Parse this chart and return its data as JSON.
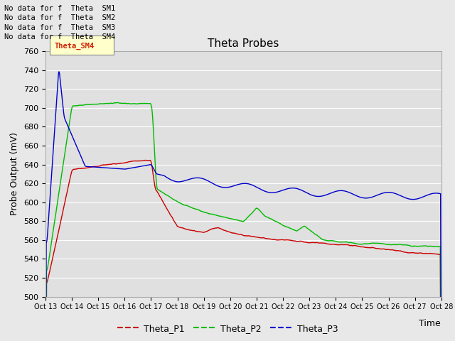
{
  "title": "Theta Probes",
  "ylabel": "Probe Output (mV)",
  "xlabel": "Time",
  "ylim": [
    500,
    760
  ],
  "yticks": [
    500,
    520,
    540,
    560,
    580,
    600,
    620,
    640,
    660,
    680,
    700,
    720,
    740,
    760
  ],
  "fig_bg": "#e8e8e8",
  "plot_bg": "#e0e0e0",
  "grid_color": "#ffffff",
  "no_data_lines": [
    "No data for f  Theta  SM1",
    "No data for f  Theta  SM2",
    "No data for f  Theta  SM3",
    "No data for f  Theta  SM4"
  ],
  "tooltip_text": "Theta_SM4",
  "tooltip_color": "#cc2200",
  "tooltip_bg": "#ffffcc",
  "legend_entries": [
    "Theta_P1",
    "Theta_P2",
    "Theta_P3"
  ],
  "legend_colors": [
    "#cc0000",
    "#00bb00",
    "#0000cc"
  ],
  "xtick_labels": [
    "Oct 13",
    "Oct 14",
    "Oct 15",
    "Oct 16",
    "Oct 17",
    "Oct 18",
    "Oct 19",
    "Oct 20",
    "Oct 21",
    "Oct 22",
    "Oct 23",
    "Oct 24",
    "Oct 25",
    "Oct 26",
    "Oct 27",
    "Oct 28"
  ]
}
